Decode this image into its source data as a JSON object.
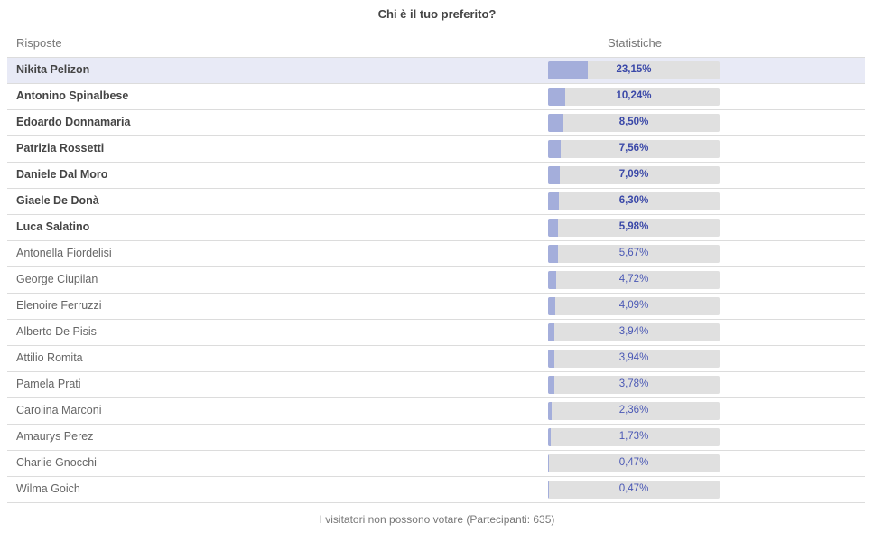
{
  "title": "Chi è il tuo preferito?",
  "header": {
    "answers_label": "Risposte",
    "stats_label": "Statistiche"
  },
  "footer_text": "I visitatori non possono votare (Partecipanti: 635)",
  "colors": {
    "bar_fill": "#a4aedb",
    "bar_track": "#e0e0e0",
    "highlight_row": "#e8eaf6",
    "value_text": "#4a58b5"
  },
  "chart_data": {
    "type": "bar",
    "orientation": "horizontal",
    "title": "Chi è il tuo preferito?",
    "unit": "%",
    "categories": [
      "Nikita Pelizon",
      "Antonino Spinalbese",
      "Edoardo Donnamaria",
      "Patrizia Rossetti",
      "Daniele Dal Moro",
      "Giaele De Donà",
      "Luca Salatino",
      "Antonella Fiordelisi",
      "George Ciupilan",
      "Elenoire Ferruzzi",
      "Alberto De Pisis",
      "Attilio Romita",
      "Pamela Prati",
      "Carolina Marconi",
      "Amaurys Perez",
      "Charlie Gnocchi",
      "Wilma Goich"
    ],
    "values": [
      23.15,
      10.24,
      8.5,
      7.56,
      7.09,
      6.3,
      5.98,
      5.67,
      4.72,
      4.09,
      3.94,
      3.94,
      3.78,
      2.36,
      1.73,
      0.47,
      0.47
    ],
    "value_labels": [
      "23,15%",
      "10,24%",
      "8,50%",
      "7,56%",
      "7,09%",
      "6,30%",
      "5,98%",
      "5,67%",
      "4,72%",
      "4,09%",
      "3,94%",
      "3,94%",
      "3,78%",
      "2,36%",
      "1,73%",
      "0,47%",
      "0,47%"
    ],
    "highlighted_index": 0,
    "bold_count": 7,
    "xlim": [
      0,
      100
    ]
  }
}
